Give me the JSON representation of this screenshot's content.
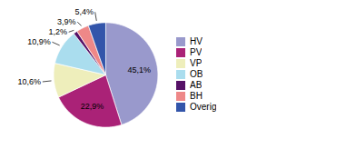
{
  "chart_data": {
    "type": "pie",
    "categories": [
      "HV",
      "PV",
      "VP",
      "OB",
      "AB",
      "BH",
      "Overig"
    ],
    "values": [
      45.1,
      22.9,
      10.6,
      10.9,
      1.2,
      3.9,
      5.4
    ],
    "value_labels": [
      "45,1%",
      "22,9%",
      "10,6%",
      "10,9%",
      "1,2%",
      "3,9%",
      "5,4%"
    ],
    "colors": [
      "#9999cc",
      "#aa2277",
      "#eeeebb",
      "#aaddee",
      "#551166",
      "#ee8888",
      "#3355aa"
    ],
    "data_labels": true,
    "legend": "right"
  }
}
